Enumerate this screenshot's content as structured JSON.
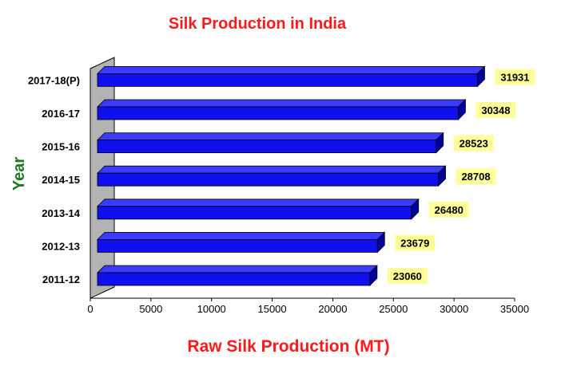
{
  "chart_data": {
    "type": "bar",
    "orientation": "horizontal",
    "style": "3d",
    "title": "Silk Production in India",
    "xlabel": "Raw Silk Production (MT)",
    "ylabel": "Year",
    "categories": [
      "2011-12",
      "2012-13",
      "2013-14",
      "2014-15",
      "2015-16",
      "2016-17",
      "2017-18(P)"
    ],
    "values": [
      23060,
      23679,
      26480,
      28708,
      28523,
      30348,
      31931
    ],
    "xlim": [
      0,
      35000
    ],
    "xticks": [
      "0",
      "5000",
      "10000",
      "15000",
      "20000",
      "25000",
      "30000",
      "35000"
    ],
    "data_labels": [
      "23060",
      "23679",
      "26480",
      "28708",
      "28523",
      "30348",
      "31931"
    ],
    "grid": false,
    "legend": "none",
    "colors": {
      "bar_front": "#1010ee",
      "bar_top": "#3b3bff",
      "bar_side": "#00009a",
      "wall": "#b3b3b3",
      "label_bg": "#ffff99",
      "title": "#ff1a1a",
      "ylabel": "#1e7a1e"
    }
  }
}
